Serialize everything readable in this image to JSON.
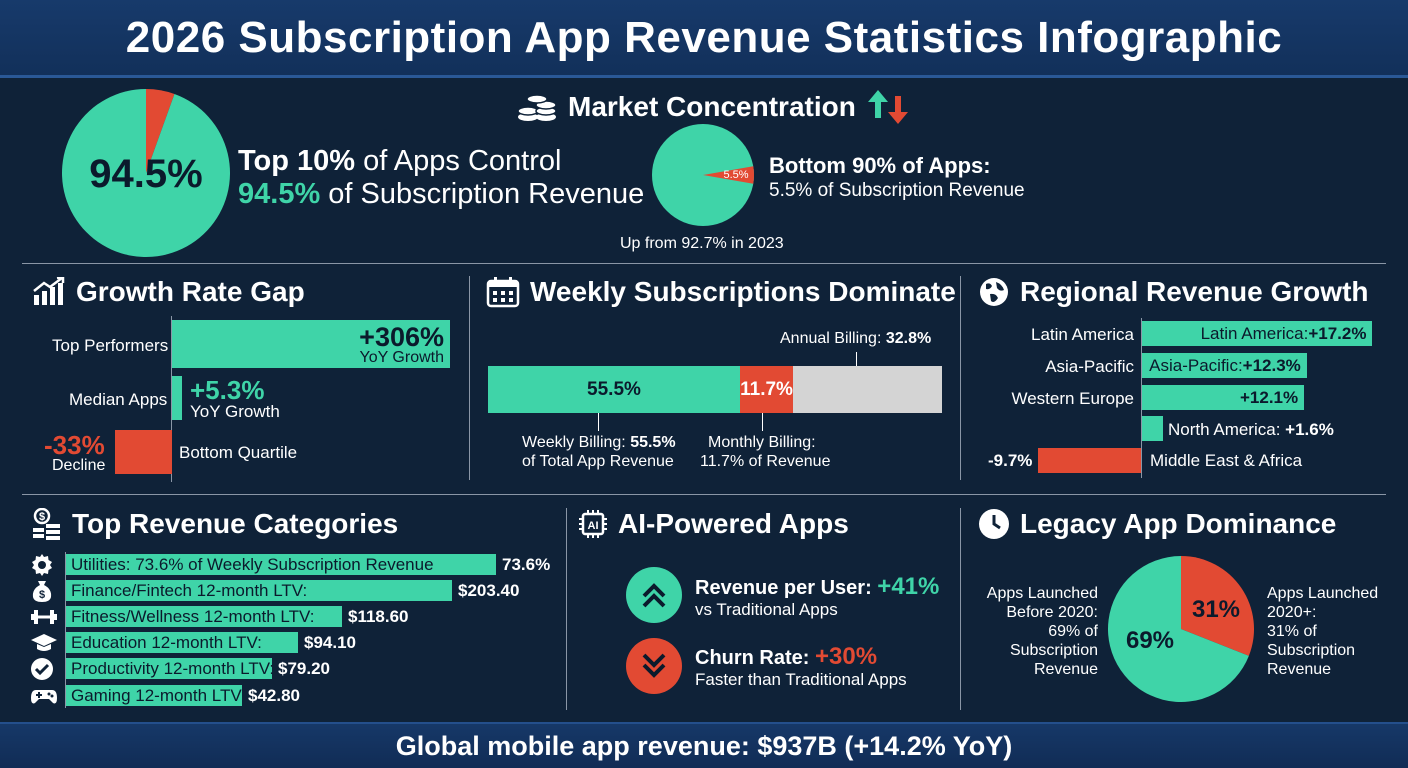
{
  "title": "2026 Subscription App Revenue Statistics Infographic",
  "footer": "Global mobile app revenue: $937B (+14.2% YoY)",
  "colors": {
    "teal": "#3fd4a8",
    "red": "#e24a33",
    "background": "#0f2238",
    "gray": "#d4d4d4"
  },
  "market": {
    "heading": "Market Concentration",
    "heading_icon": "coins-icon",
    "arrows_icon": "up-down-arrows-icon",
    "big_pie_label": "94.5%",
    "top_line1_bold": "Top 10%",
    "top_line1_rest": " of Apps Control",
    "top_line2_pct": "94.5%",
    "top_line2_rest": " of Subscription Revenue",
    "small_pie_label": "5.5%",
    "bottom_title": "Bottom 90% of Apps:",
    "bottom_sub": "5.5% of Subscription Revenue",
    "note": "Up from 92.7% in 2023"
  },
  "growth": {
    "heading": "Growth Rate Gap",
    "icon": "trend-chart-icon",
    "top_label": "Top Performers",
    "top_value": "+306%",
    "top_sub": "YoY Growth",
    "median_label": "Median Apps",
    "median_value": "+5.3%",
    "median_sub": "YoY Growth",
    "bottom_value": "-33%",
    "bottom_sub": "Decline",
    "bottom_label": "Bottom Quartile"
  },
  "weekly": {
    "heading": "Weekly Subscriptions Dominate",
    "icon": "calendar-icon",
    "annual_label": "Annual Billing: ",
    "annual_value": "32.8%",
    "seg_weekly": "55.5%",
    "seg_monthly": "11.7%",
    "weekly_label1": "Weekly Billing: ",
    "weekly_value": "55.5%",
    "weekly_label2": "of Total App Revenue",
    "monthly_label1": "Monthly Billing:",
    "monthly_label2": "11.7% of Revenue"
  },
  "regional": {
    "heading": "Regional Revenue Growth",
    "icon": "globe-icon",
    "rows": [
      {
        "label": "Latin America",
        "bar_text": "Latin America: ",
        "value": "+17.2%"
      },
      {
        "label": "Asia-Pacific",
        "bar_text": "Asia-Pacific: ",
        "value": "+12.3%"
      },
      {
        "label": "Western Europe",
        "bar_text": "",
        "value": "+12.1%"
      },
      {
        "label": "",
        "bar_text": "North America: ",
        "value": "+1.6%"
      },
      {
        "label": "-9.7%",
        "bar_text": "Middle East & Africa",
        "value": ""
      }
    ]
  },
  "categories": {
    "heading": "Top Revenue Categories",
    "icon": "money-bag-icon",
    "rows": [
      {
        "label": "Utilities: 73.6% of Weekly Subscription Revenue",
        "value": "73.6%",
        "icon": "gear-icon"
      },
      {
        "label": "Finance/Fintech 12-month LTV:",
        "value": "$203.40",
        "icon": "money-bag-icon"
      },
      {
        "label": "Fitness/Wellness 12-month LTV:",
        "value": "$118.60",
        "icon": "dumbbell-icon"
      },
      {
        "label": "Education 12-month LTV:",
        "value": "$94.10",
        "icon": "graduation-cap-icon"
      },
      {
        "label": "Productivity 12-month LTV:",
        "value": "$79.20",
        "icon": "checkmark-icon"
      },
      {
        "label": "Gaming 12-month LTV:",
        "value": "$42.80",
        "icon": "gamepad-icon"
      }
    ]
  },
  "ai": {
    "heading": "AI-Powered Apps",
    "icon": "ai-chip-icon",
    "rev_label": "Revenue per User: ",
    "rev_value": "+41%",
    "rev_sub": "vs Traditional Apps",
    "churn_label": "Churn Rate: ",
    "churn_value": "+30%",
    "churn_sub": "Faster than Traditional Apps"
  },
  "legacy": {
    "heading": "Legacy App Dominance",
    "icon": "clock-icon",
    "left_lines": [
      "Apps Launched",
      "Before 2020:",
      "69% of",
      "Subscription",
      "Revenue"
    ],
    "right_lines": [
      "Apps Launched",
      "2020+:",
      "31% of",
      "Subscription",
      "Revenue"
    ],
    "pie_left": "69%",
    "pie_right": "31%"
  },
  "chart_data": [
    {
      "type": "pie",
      "title": "Market Concentration",
      "labels": [
        "Top 10% of Apps",
        "Bottom 90% of Apps"
      ],
      "values": [
        94.5,
        5.5
      ]
    },
    {
      "type": "bar",
      "title": "Growth Rate Gap",
      "categories": [
        "Top Performers",
        "Median Apps",
        "Bottom Quartile"
      ],
      "values": [
        306,
        5.3,
        -33
      ]
    },
    {
      "type": "bar",
      "title": "Weekly Subscriptions Dominate",
      "categories": [
        "Weekly Billing",
        "Monthly Billing",
        "Annual Billing"
      ],
      "values": [
        55.5,
        11.7,
        32.8
      ]
    },
    {
      "type": "bar",
      "title": "Regional Revenue Growth",
      "categories": [
        "Latin America",
        "Asia-Pacific",
        "Western Europe",
        "North America",
        "Middle East & Africa"
      ],
      "values": [
        17.2,
        12.3,
        12.1,
        1.6,
        -9.7
      ]
    },
    {
      "type": "bar",
      "title": "Top Revenue Categories",
      "categories": [
        "Utilities",
        "Finance/Fintech",
        "Fitness/Wellness",
        "Education",
        "Productivity",
        "Gaming"
      ],
      "values": [
        73.6,
        203.4,
        118.6,
        94.1,
        79.2,
        42.8
      ]
    },
    {
      "type": "pie",
      "title": "Legacy App Dominance",
      "labels": [
        "Apps Launched Before 2020",
        "Apps Launched 2020+"
      ],
      "values": [
        69,
        31
      ]
    }
  ]
}
